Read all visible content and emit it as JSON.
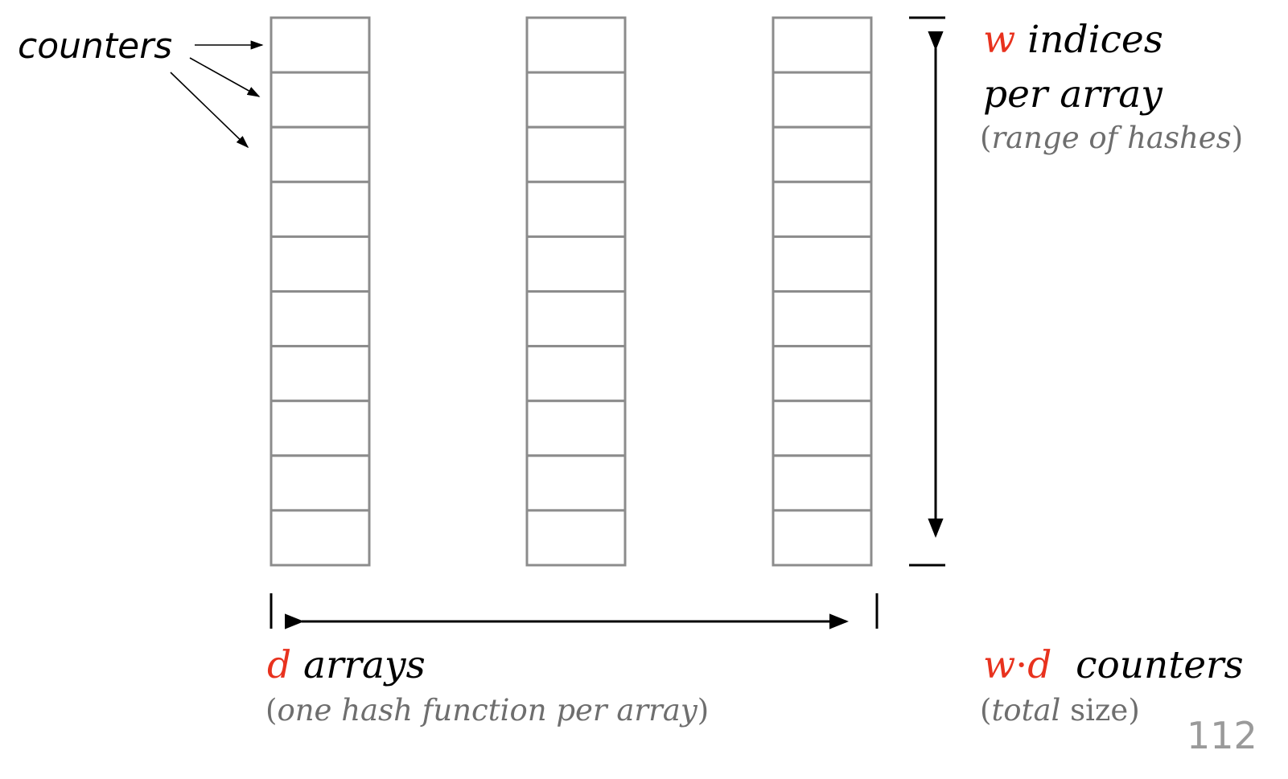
{
  "labels": {
    "counters": "counters",
    "w_var": "w",
    "w_title_rest": "indices",
    "w_title_line2": "per array",
    "w_sub": "range of hashes",
    "d_var": "d",
    "d_title_rest": "arrays",
    "d_sub": "one hash function per array",
    "wd_var_w": "w",
    "wd_dot": "·",
    "wd_var_d": "d",
    "wd_rest": "counters",
    "wd_sub_italic": "total",
    "wd_sub_plain": "size"
  },
  "diagram": {
    "arrays": 3,
    "cells_per_array": 10,
    "cell_stroke_color": "#8c8c8c",
    "arrow_color": "#000000",
    "accent_color": "#e8321e"
  },
  "slide_number": "112"
}
